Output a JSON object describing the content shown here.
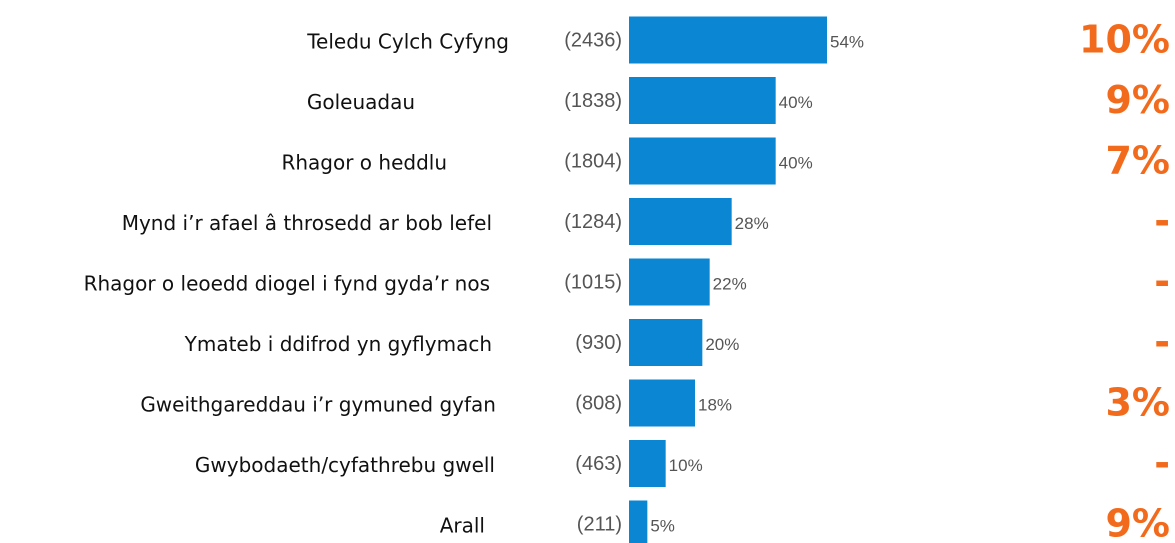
{
  "chart_data": {
    "type": "bar",
    "orientation": "horizontal",
    "color": "#0a86d2",
    "categories": [
      "Teledu Cylch Cyfyng",
      "Goleuadau",
      "Rhagor o heddlu",
      "Mynd i’r afael â throsedd ar bob lefel",
      "Rhagor o leoedd diogel i fynd gyda’r nos",
      "Ymateb i ddifrod yn gyflymach",
      "Gweithgareddau i’r gymuned gyfan",
      "Gwybodaeth/cyfathrebu gwell",
      "Arall"
    ],
    "count_labels": [
      "(2436)",
      "(1838)",
      "(1804)",
      "(1284)",
      "(1015)",
      "(930)",
      "(808)",
      "(463)",
      "(211)"
    ],
    "values": [
      54,
      40,
      40,
      28,
      22,
      20,
      18,
      10,
      5
    ],
    "value_labels": [
      "54%",
      "40%",
      "40%",
      "28%",
      "22%",
      "20%",
      "18%",
      "10%",
      "5%"
    ],
    "comparison_labels": [
      "10%",
      "9%",
      "7%",
      "-",
      "-",
      "-",
      "3%",
      "-",
      "9%"
    ],
    "comparison_color": "#f26b1d"
  }
}
